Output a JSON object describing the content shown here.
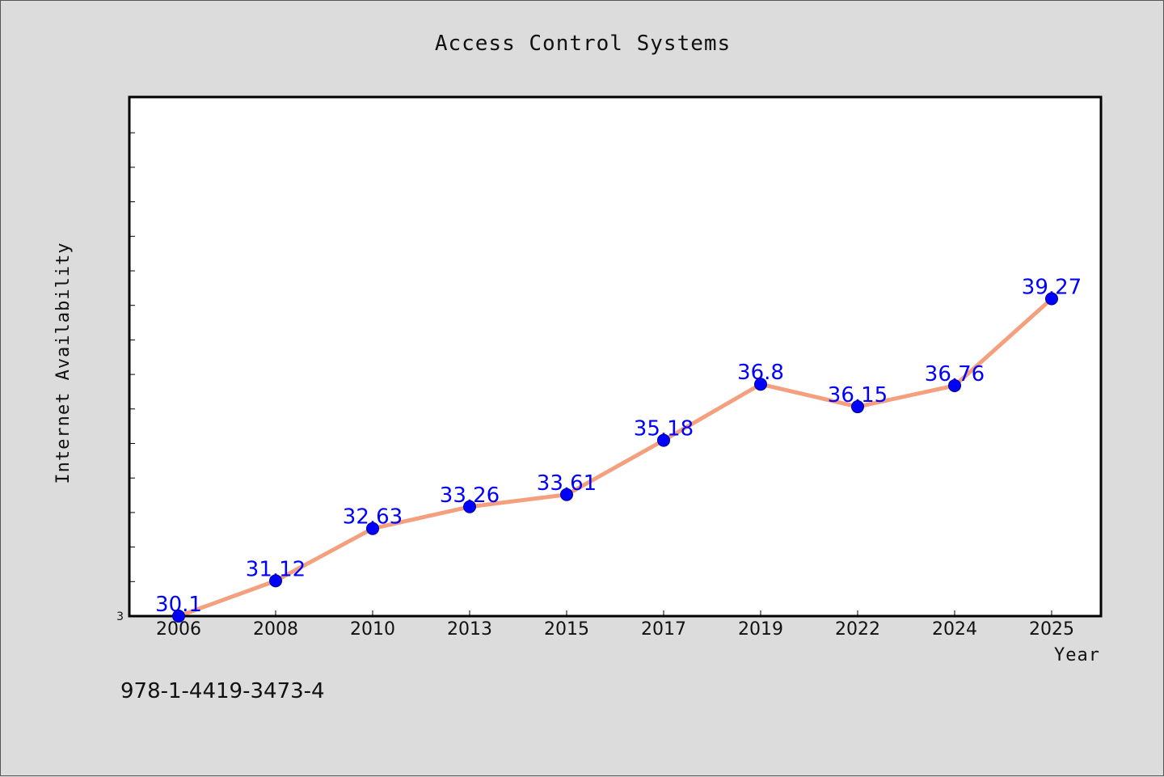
{
  "chart_data": {
    "type": "line",
    "title": "Access Control Systems",
    "xlabel": "Year",
    "ylabel": "Internet Availability",
    "categories": [
      "2006",
      "2008",
      "2010",
      "2013",
      "2015",
      "2017",
      "2019",
      "2022",
      "2024",
      "2025"
    ],
    "series": [
      {
        "values": [
          30.1,
          31.12,
          32.63,
          33.26,
          33.61,
          35.18,
          36.8,
          36.15,
          36.76,
          39.27
        ],
        "labels": [
          "30.1",
          "31.12",
          "32.63",
          "33.26",
          "33.61",
          "35.18",
          "36.8",
          "36.15",
          "36.76",
          "39.27"
        ],
        "line_color": "#f4a07e",
        "marker_color": "#0000ff"
      }
    ],
    "ylim": [
      30.1,
      45.1
    ],
    "y_tick_labels": [
      "3"
    ],
    "grid": false,
    "legend": "none"
  },
  "footer_text": "978-1-4419-3473-4"
}
